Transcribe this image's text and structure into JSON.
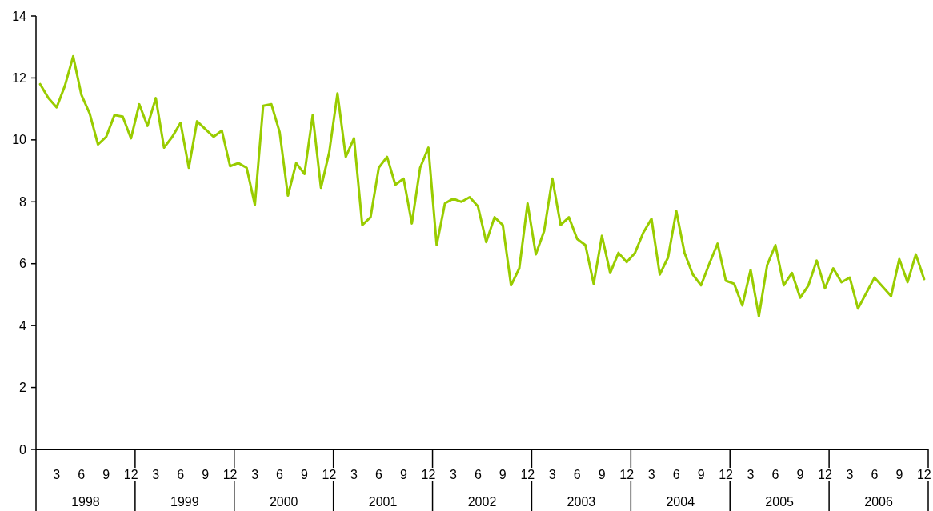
{
  "chart_data": {
    "type": "line",
    "categories": [
      null,
      null,
      "3",
      null,
      null,
      "6",
      null,
      null,
      "9",
      null,
      null,
      "12",
      null,
      null,
      "3",
      null,
      null,
      "6",
      null,
      null,
      "9",
      null,
      null,
      "12",
      null,
      null,
      "3",
      null,
      null,
      "6",
      null,
      null,
      "9",
      null,
      null,
      "12",
      null,
      null,
      "3",
      null,
      null,
      "6",
      null,
      null,
      "9",
      null,
      null,
      "12",
      null,
      null,
      "3",
      null,
      null,
      "6",
      null,
      null,
      "9",
      null,
      null,
      "12",
      null,
      null,
      "3",
      null,
      null,
      "6",
      null,
      null,
      "9",
      null,
      null,
      "12",
      null,
      null,
      "3",
      null,
      null,
      "6",
      null,
      null,
      "9",
      null,
      null,
      "12",
      null,
      null,
      "3",
      null,
      null,
      "6",
      null,
      null,
      "9",
      null,
      null,
      "12",
      null,
      null,
      "3",
      null,
      null,
      "6",
      null,
      null,
      "9",
      null,
      null,
      "12"
    ],
    "annotations": [
      "1998",
      "1999",
      "2000",
      "2001",
      "2002",
      "2003",
      "2004",
      "2005",
      "2006"
    ],
    "series": [
      {
        "color": "#99cc00",
        "values": [
          11.8,
          11.35,
          11.05,
          11.75,
          12.7,
          11.45,
          10.85,
          9.85,
          10.1,
          10.8,
          10.75,
          10.05,
          11.15,
          10.45,
          11.35,
          9.75,
          10.1,
          10.55,
          9.1,
          10.6,
          10.35,
          10.1,
          10.3,
          9.15,
          9.25,
          9.1,
          7.9,
          11.1,
          11.15,
          10.25,
          8.2,
          9.25,
          8.9,
          10.8,
          8.45,
          9.6,
          11.5,
          9.45,
          10.05,
          7.25,
          7.5,
          9.1,
          9.45,
          8.55,
          8.75,
          7.3,
          9.1,
          9.75,
          6.6,
          7.95,
          8.1,
          8.0,
          8.15,
          7.85,
          6.7,
          7.5,
          7.25,
          5.3,
          5.85,
          7.95,
          6.3,
          7.05,
          8.75,
          7.25,
          7.5,
          6.8,
          6.6,
          5.35,
          6.9,
          5.7,
          6.35,
          6.05,
          6.35,
          7.0,
          7.45,
          5.65,
          6.2,
          7.7,
          6.35,
          5.65,
          5.3,
          6.0,
          6.65,
          5.45,
          5.35,
          4.65,
          5.8,
          4.3,
          5.95,
          6.6,
          5.3,
          5.7,
          4.9,
          5.3,
          6.1,
          5.2,
          5.85,
          5.4,
          5.55,
          4.55,
          5.05,
          5.55,
          5.25,
          4.95,
          6.15,
          5.4,
          6.3,
          5.5
        ]
      }
    ],
    "ylim": [
      0,
      14
    ],
    "yticks": [
      0,
      2,
      4,
      6,
      8,
      10,
      12,
      14
    ],
    "grid": false,
    "marker": "none",
    "line_style": "solid"
  }
}
